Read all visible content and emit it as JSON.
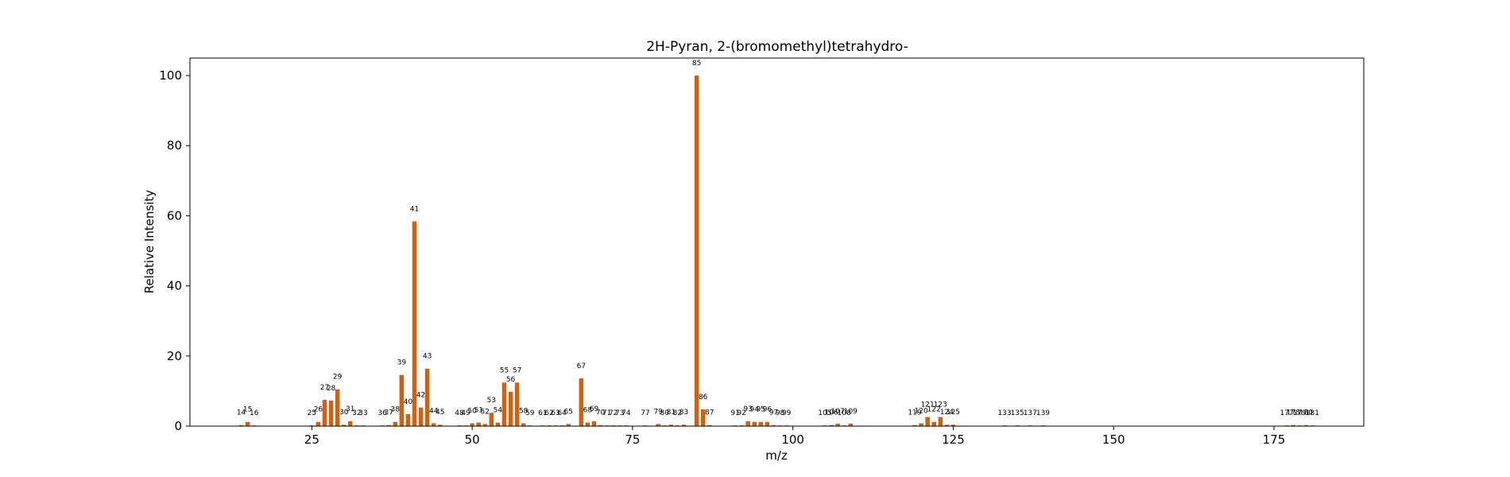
{
  "chart_data": {
    "type": "bar",
    "title": "2H-Pyran, 2-(bromomethyl)tetrahydro-",
    "xlabel": "m/z",
    "ylabel": "Relative Intensity",
    "xlim": [
      6,
      189
    ],
    "ylim": [
      0,
      105
    ],
    "xticks": [
      25,
      50,
      75,
      100,
      125,
      150,
      175
    ],
    "yticks": [
      0,
      20,
      40,
      60,
      80,
      100
    ],
    "grid": false,
    "bar_color": "#d2600f",
    "peaks": [
      {
        "mz": 14,
        "intensity": 0.3
      },
      {
        "mz": 15,
        "intensity": 1.2
      },
      {
        "mz": 16,
        "intensity": 0.2
      },
      {
        "mz": 25,
        "intensity": 0.2
      },
      {
        "mz": 26,
        "intensity": 1.2
      },
      {
        "mz": 27,
        "intensity": 7.5
      },
      {
        "mz": 28,
        "intensity": 7.3
      },
      {
        "mz": 29,
        "intensity": 10.5
      },
      {
        "mz": 30,
        "intensity": 0.4
      },
      {
        "mz": 31,
        "intensity": 1.4
      },
      {
        "mz": 32,
        "intensity": 0.2
      },
      {
        "mz": 33,
        "intensity": 0.2
      },
      {
        "mz": 36,
        "intensity": 0.2
      },
      {
        "mz": 37,
        "intensity": 0.3
      },
      {
        "mz": 38,
        "intensity": 1.2
      },
      {
        "mz": 39,
        "intensity": 14.6
      },
      {
        "mz": 40,
        "intensity": 3.4
      },
      {
        "mz": 41,
        "intensity": 58.4
      },
      {
        "mz": 42,
        "intensity": 5.3
      },
      {
        "mz": 43,
        "intensity": 16.4
      },
      {
        "mz": 44,
        "intensity": 0.8
      },
      {
        "mz": 45,
        "intensity": 0.4
      },
      {
        "mz": 48,
        "intensity": 0.2
      },
      {
        "mz": 49,
        "intensity": 0.2
      },
      {
        "mz": 50,
        "intensity": 0.8
      },
      {
        "mz": 51,
        "intensity": 1.0
      },
      {
        "mz": 52,
        "intensity": 0.6
      },
      {
        "mz": 53,
        "intensity": 3.8
      },
      {
        "mz": 54,
        "intensity": 1.0
      },
      {
        "mz": 55,
        "intensity": 12.4
      },
      {
        "mz": 56,
        "intensity": 9.8
      },
      {
        "mz": 57,
        "intensity": 12.4
      },
      {
        "mz": 58,
        "intensity": 0.8
      },
      {
        "mz": 59,
        "intensity": 0.2
      },
      {
        "mz": 61,
        "intensity": 0.2
      },
      {
        "mz": 62,
        "intensity": 0.2
      },
      {
        "mz": 63,
        "intensity": 0.2
      },
      {
        "mz": 64,
        "intensity": 0.2
      },
      {
        "mz": 65,
        "intensity": 0.6
      },
      {
        "mz": 67,
        "intensity": 13.6
      },
      {
        "mz": 68,
        "intensity": 1.0
      },
      {
        "mz": 69,
        "intensity": 1.4
      },
      {
        "mz": 70,
        "intensity": 0.3
      },
      {
        "mz": 71,
        "intensity": 0.2
      },
      {
        "mz": 72,
        "intensity": 0.2
      },
      {
        "mz": 73,
        "intensity": 0.2
      },
      {
        "mz": 74,
        "intensity": 0.2
      },
      {
        "mz": 77,
        "intensity": 0.2
      },
      {
        "mz": 79,
        "intensity": 0.6
      },
      {
        "mz": 80,
        "intensity": 0.2
      },
      {
        "mz": 81,
        "intensity": 0.4
      },
      {
        "mz": 82,
        "intensity": 0.2
      },
      {
        "mz": 83,
        "intensity": 0.4
      },
      {
        "mz": 85,
        "intensity": 100
      },
      {
        "mz": 86,
        "intensity": 4.8
      },
      {
        "mz": 87,
        "intensity": 0.3
      },
      {
        "mz": 91,
        "intensity": 0.2
      },
      {
        "mz": 92,
        "intensity": 0.2
      },
      {
        "mz": 93,
        "intensity": 1.4
      },
      {
        "mz": 94,
        "intensity": 1.2
      },
      {
        "mz": 95,
        "intensity": 1.2
      },
      {
        "mz": 96,
        "intensity": 1.2
      },
      {
        "mz": 97,
        "intensity": 0.3
      },
      {
        "mz": 98,
        "intensity": 0.2
      },
      {
        "mz": 99,
        "intensity": 0.2
      },
      {
        "mz": 105,
        "intensity": 0.2
      },
      {
        "mz": 106,
        "intensity": 0.3
      },
      {
        "mz": 107,
        "intensity": 0.7
      },
      {
        "mz": 108,
        "intensity": 0.2
      },
      {
        "mz": 109,
        "intensity": 0.7
      },
      {
        "mz": 119,
        "intensity": 0.3
      },
      {
        "mz": 120,
        "intensity": 0.8
      },
      {
        "mz": 121,
        "intensity": 2.6
      },
      {
        "mz": 122,
        "intensity": 1.2
      },
      {
        "mz": 123,
        "intensity": 2.6
      },
      {
        "mz": 124,
        "intensity": 0.4
      },
      {
        "mz": 125,
        "intensity": 0.4
      },
      {
        "mz": 133,
        "intensity": 0.2
      },
      {
        "mz": 135,
        "intensity": 0.2
      },
      {
        "mz": 137,
        "intensity": 0.2
      },
      {
        "mz": 139,
        "intensity": 0.2
      },
      {
        "mz": 177,
        "intensity": 0.2
      },
      {
        "mz": 178,
        "intensity": 0.3
      },
      {
        "mz": 179,
        "intensity": 0.2
      },
      {
        "mz": 180,
        "intensity": 0.3
      },
      {
        "mz": 181,
        "intensity": 0.2
      }
    ]
  }
}
